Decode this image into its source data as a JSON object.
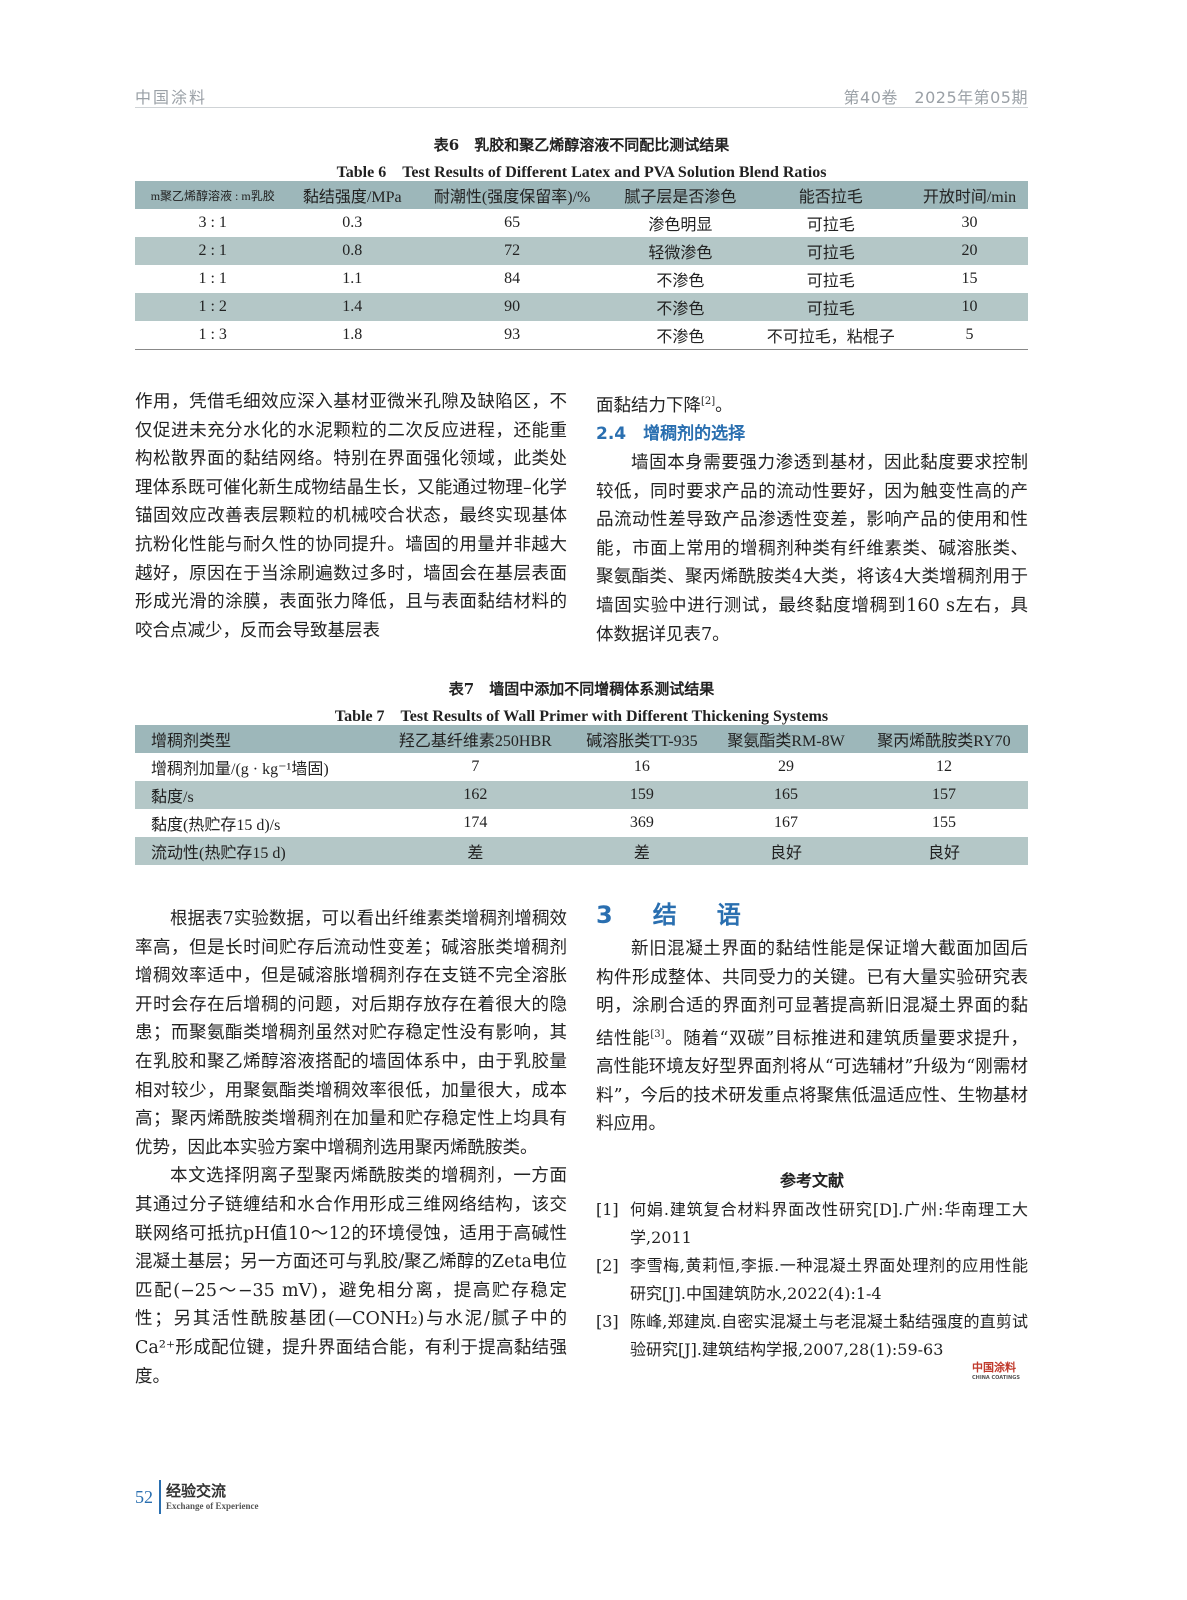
{
  "header": {
    "journal": "中国涂料",
    "issue": "第40卷　2025年第05期"
  },
  "table6": {
    "title_cn": "表6　乳胶和聚乙烯醇溶液不同配比测试结果",
    "title_en": "Table 6　Test Results of Different Latex and PVA Solution Blend Ratios",
    "headers": [
      "m聚乙烯醇溶液 : m乳胶",
      "黏结强度/MPa",
      "耐潮性(强度保留率)/%",
      "腻子层是否渗色",
      "能否拉毛",
      "开放时间/min"
    ],
    "rows": [
      [
        "3 : 1",
        "0.3",
        "65",
        "渗色明显",
        "可拉毛",
        "30"
      ],
      [
        "2 : 1",
        "0.8",
        "72",
        "轻微渗色",
        "可拉毛",
        "20"
      ],
      [
        "1 : 1",
        "1.1",
        "84",
        "不渗色",
        "可拉毛",
        "15"
      ],
      [
        "1 : 2",
        "1.4",
        "90",
        "不渗色",
        "可拉毛",
        "10"
      ],
      [
        "1 : 3",
        "1.8",
        "93",
        "不渗色",
        "不可拉毛，粘棍子",
        "5"
      ]
    ]
  },
  "left1": "作用，凭借毛细效应深入基材亚微米孔隙及缺陷区，不仅促进未充分水化的水泥颗粒的二次反应进程，还能重构松散界面的黏结网络。特别在界面强化领域，此类处理体系既可催化新生成物结晶生长，又能通过物理–化学锚固效应改善表层颗粒的机械咬合状态，最终实现基体抗粉化性能与耐久性的协同提升。墙固的用量并非越大越好，原因在于当涂刷遍数过多时，墙固会在基层表面形成光滑的涂膜，表面张力降低，且与表面黏结材料的咬合点减少，反而会导致基层表",
  "right1": {
    "cont": "面黏结力下降",
    "cont_ref": "[2]",
    "cont_end": "。",
    "sec": "2.4　增稠剂的选择",
    "p": "墙固本身需要强力渗透到基材，因此黏度要求控制较低，同时要求产品的流动性要好，因为触变性高的产品流动性差导致产品渗透性变差，影响产品的使用和性能，市面上常用的增稠剂种类有纤维素类、碱溶胀类、聚氨酯类、聚丙烯酰胺类4大类，将该4大类增稠剂用于墙固实验中进行测试，最终黏度增稠到160 s左右，具体数据详见表7。"
  },
  "table7": {
    "title_cn": "表7　墙固中添加不同增稠体系测试结果",
    "title_en": "Table 7　Test Results of Wall Primer with Different Thickening Systems",
    "headers": [
      "增稠剂类型",
      "羟乙基纤维素250HBR",
      "碱溶胀类TT-935",
      "聚氨酯类RM-8W",
      "聚丙烯酰胺类RY70"
    ],
    "rows": [
      [
        "增稠剂加量/(g · kg⁻¹墙固)",
        "7",
        "16",
        "29",
        "12"
      ],
      [
        "黏度/s",
        "162",
        "159",
        "165",
        "157"
      ],
      [
        "黏度(热贮存15 d)/s",
        "174",
        "369",
        "167",
        "155"
      ],
      [
        "流动性(热贮存15 d)",
        "差",
        "差",
        "良好",
        "良好"
      ]
    ]
  },
  "left2": [
    "根据表7实验数据，可以看出纤维素类增稠剂增稠效率高，但是长时间贮存后流动性变差；碱溶胀类增稠剂增稠效率适中，但是碱溶胀增稠剂存在支链不完全溶胀开时会存在后增稠的问题，对后期存放存在着很大的隐患；而聚氨酯类增稠剂虽然对贮存稳定性没有影响，其在乳胶和聚乙烯醇溶液搭配的墙固体系中，由于乳胶量相对较少，用聚氨酯类增稠效率很低，加量很大，成本高；聚丙烯酰胺类增稠剂在加量和贮存稳定性上均具有优势，因此本实验方案中增稠剂选用聚丙烯酰胺类。",
    "本文选择阴离子型聚丙烯酰胺类的增稠剂，一方面其通过分子链缠结和水合作用形成三维网络结构，该交联网络可抵抗pH值10～12的环境侵蚀，适用于高碱性混凝土基层；另一方面还可与乳胶/聚乙烯醇的Zeta电位匹配(−25～−35 mV)，避免相分离，提高贮存稳定性；另其活性酰胺基团(—CONH₂)与水泥/腻子中的Ca²⁺形成配位键，提升界面结合能，有利于提高黏结强度。"
  ],
  "sec3": {
    "title": "3　结　语",
    "p1": "新旧混凝土界面的黏结性能是保证增大截面加固后构件形成整体、共同受力的关键。已有大量实验研究表明，涂刷合适的界面剂可显著提高新旧混凝土界面的黏结性能",
    "ref": "[3]",
    "p2": "。随着“双碳”目标推进和建筑质量要求提升，高性能环境友好型界面剂将从“可选辅材”升级为“刚需材料”，今后的技术研发重点将聚焦低温适应性、生物基材料应用。"
  },
  "references": {
    "title": "参考文献",
    "items": [
      {
        "n": "[1]",
        "t": "何娟.建筑复合材料界面改性研究[D].广州:华南理工大学,2011"
      },
      {
        "n": "[2]",
        "t": "李雪梅,黄莉恒,李振.一种混凝土界面处理剂的应用性能研究[J].中国建筑防水,2022(4):1-4"
      },
      {
        "n": "[3]",
        "t": "陈峰,郑建岚.自密实混凝土与老混凝土黏结强度的直剪试验研究[J].建筑结构学报,2007,28(1):59-63"
      }
    ]
  },
  "logo": {
    "cn": "中国涂料",
    "en": "CHINA COATINGS"
  },
  "footer": {
    "page": "52",
    "section_cn": "经验交流",
    "section_en": "Exchange of Experience"
  },
  "colors": {
    "accent": "#2a6fb0",
    "table_header": "#9db7ba",
    "table_alt": "#b4c7c7"
  }
}
